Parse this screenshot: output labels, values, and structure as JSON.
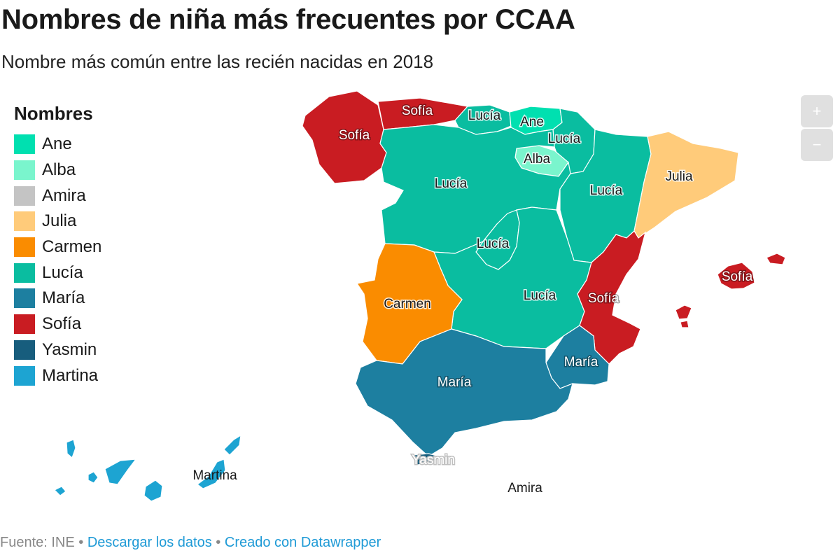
{
  "header": {
    "title": "Nombres de niña más frecuentes por CCAA",
    "subtitle": "Nombre más común entre las recién nacidas en 2018"
  },
  "legend": {
    "title": "Nombres",
    "items": [
      {
        "label": "Ane",
        "color": "#00e0b0"
      },
      {
        "label": "Alba",
        "color": "#7af5cd"
      },
      {
        "label": "Amira",
        "color": "#c4c4c4"
      },
      {
        "label": "Julia",
        "color": "#ffcb7a"
      },
      {
        "label": "Carmen",
        "color": "#fa8c00"
      },
      {
        "label": "Lucía",
        "color": "#0abda0"
      },
      {
        "label": "María",
        "color": "#1d7fa0"
      },
      {
        "label": "Sofía",
        "color": "#c91c22"
      },
      {
        "label": "Yasmin",
        "color": "#175d7d"
      },
      {
        "label": "Martina",
        "color": "#1da4d2"
      }
    ]
  },
  "map_labels": {
    "galicia": "Sofía",
    "asturias": "Sofía",
    "cantabria": "Lucía",
    "pais_vasco": "Ane",
    "navarra": "Lucía",
    "la_rioja": "Alba",
    "castilla_leon": "Lucía",
    "aragon": "Lucía",
    "cataluna": "Julia",
    "madrid": "Lucía",
    "castilla_la_mancha": "Lucía",
    "extremadura": "Carmen",
    "valencia": "Sofía",
    "baleares": "Sofía",
    "murcia": "María",
    "andalucia": "María",
    "ceuta": "Yasmin",
    "melilla": "Amira",
    "canarias": "Martina"
  },
  "controls": {
    "zoom_in": "+",
    "zoom_out": "−"
  },
  "footer": {
    "source": "Fuente: INE",
    "separator": "•",
    "download": "Descargar los datos",
    "credit": "Creado con Datawrapper"
  }
}
